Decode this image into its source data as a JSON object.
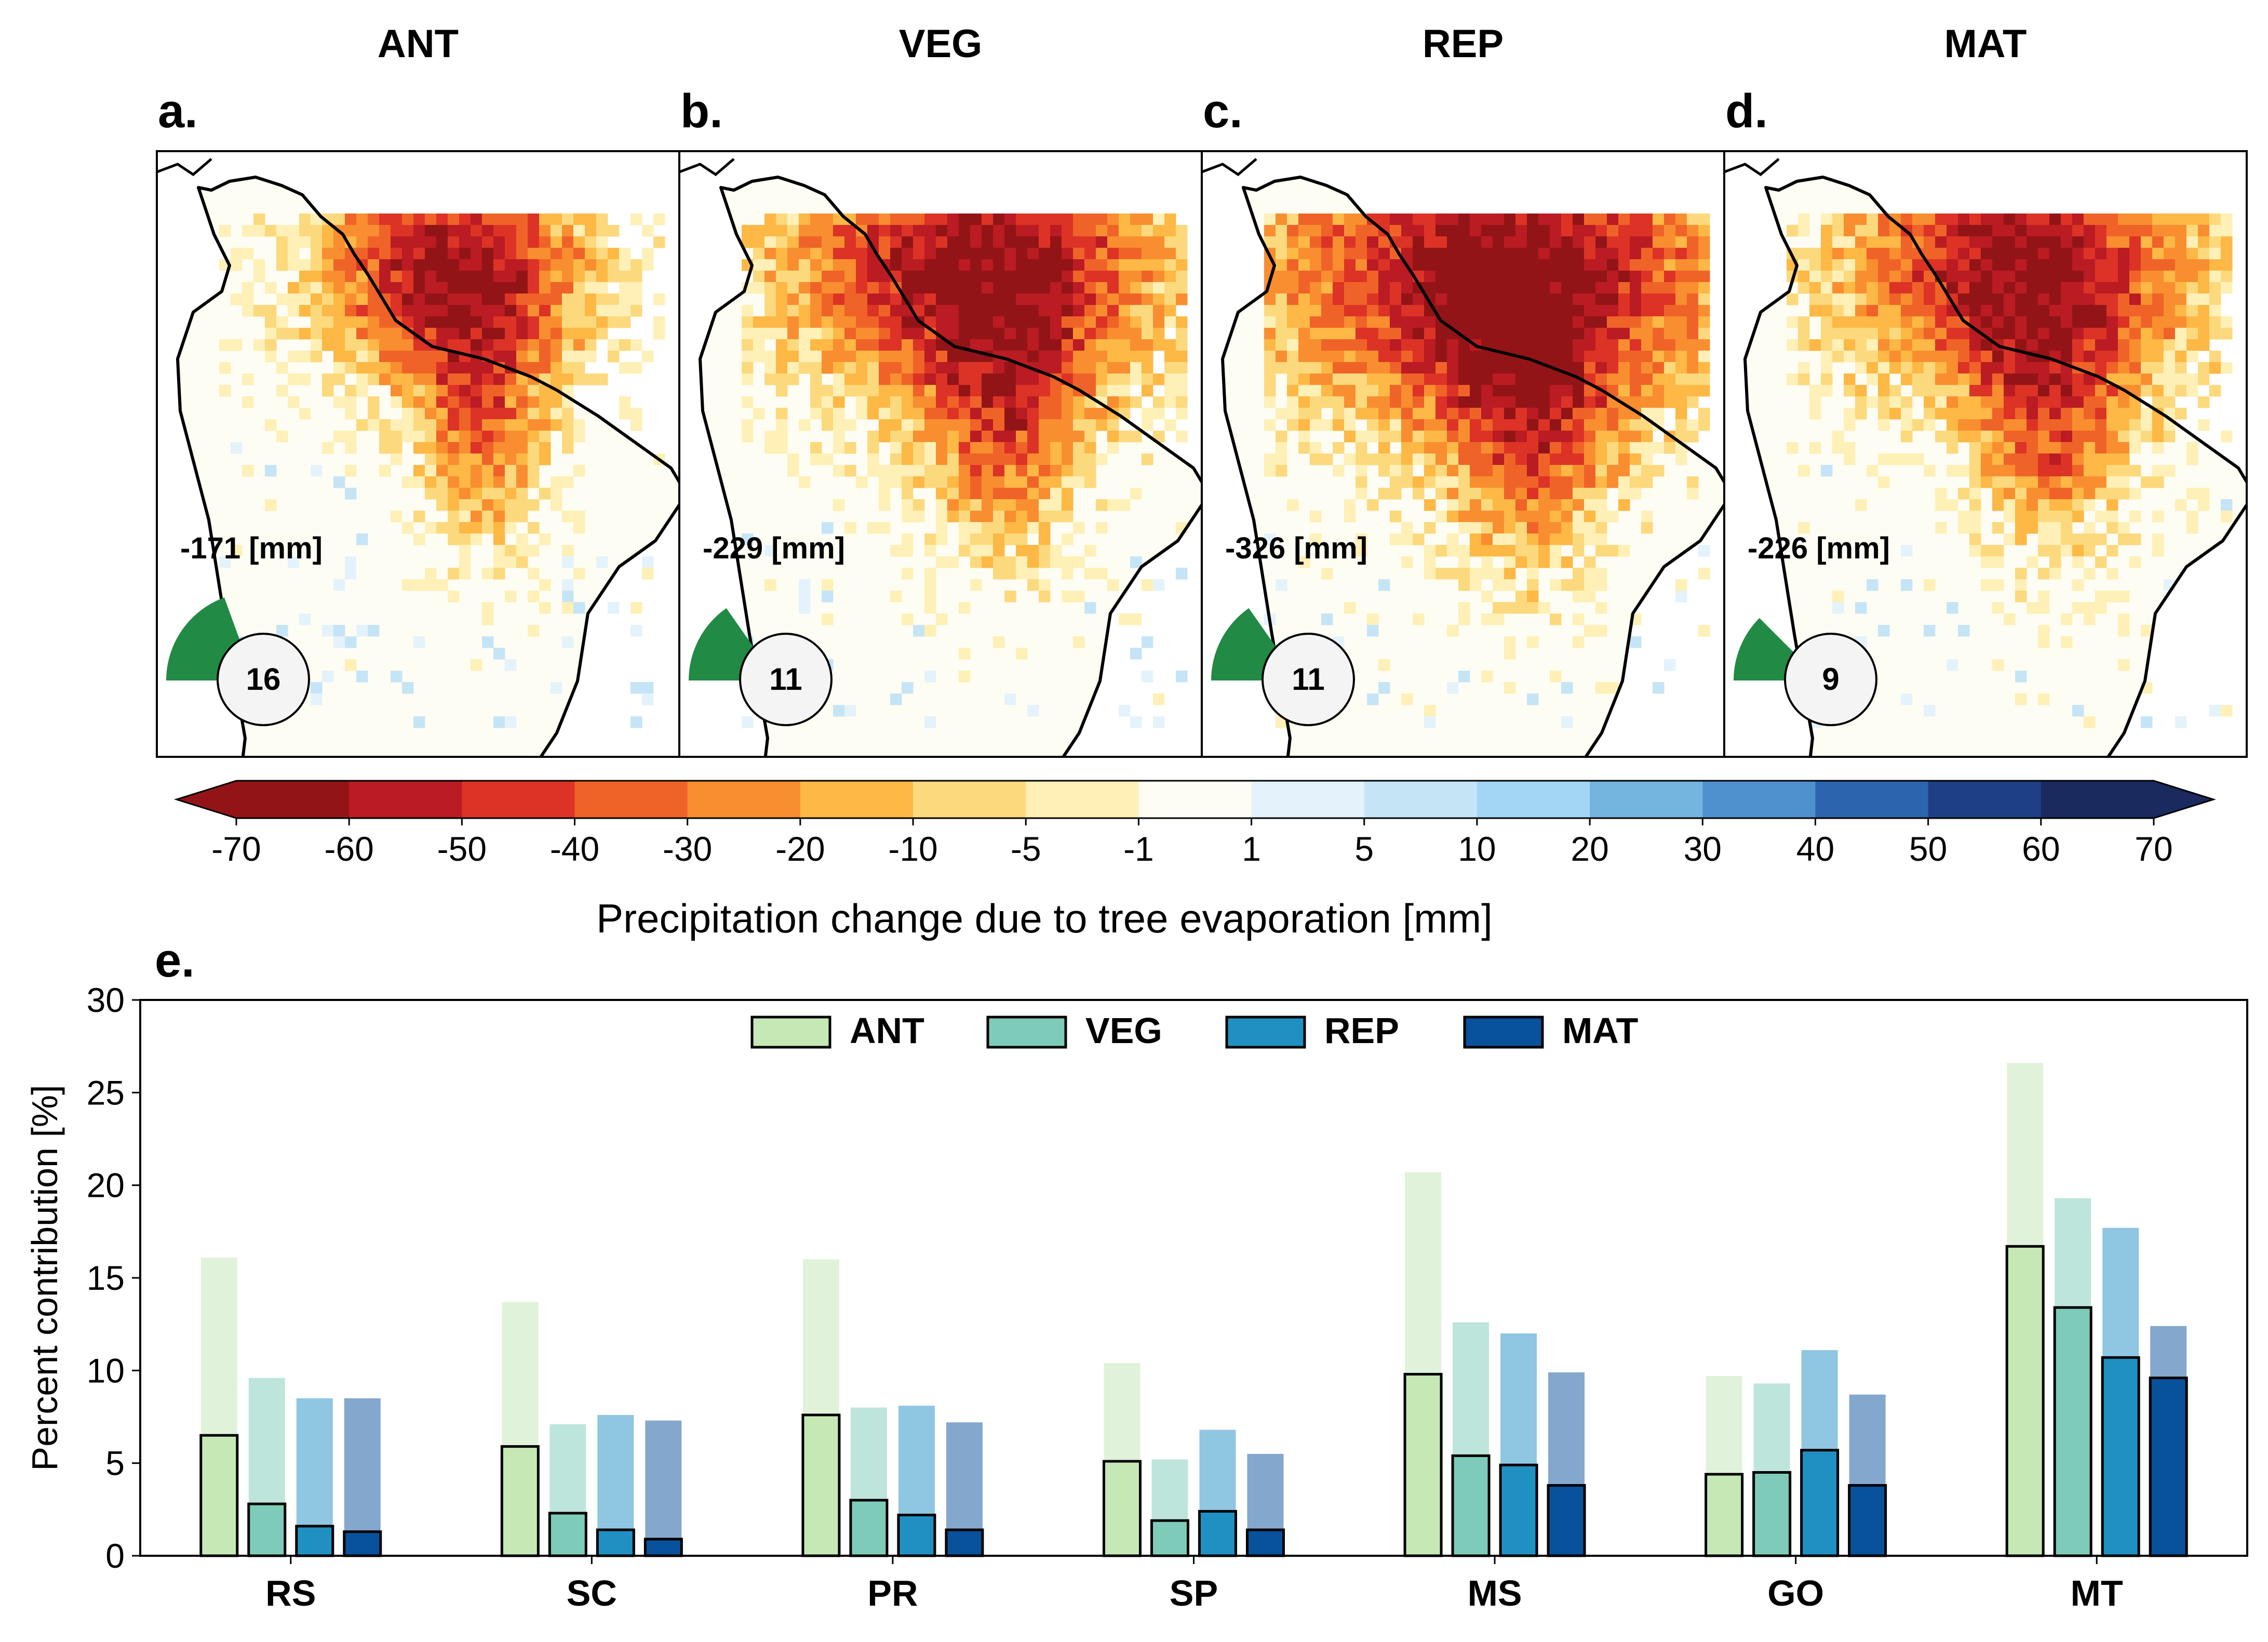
{
  "panels": [
    {
      "letter": "a.",
      "title": "ANT",
      "total": "-171 [mm]",
      "count": "16",
      "sector_deg": 70
    },
    {
      "letter": "b.",
      "title": "VEG",
      "total": "-229 [mm]",
      "count": "11",
      "sector_deg": 55
    },
    {
      "letter": "c.",
      "title": "REP",
      "total": "-326 [mm]",
      "count": "11",
      "sector_deg": 55
    },
    {
      "letter": "d.",
      "title": "MAT",
      "total": "-226 [mm]",
      "count": "9",
      "sector_deg": 45
    }
  ],
  "colorbar": {
    "label": "Precipitation change due to tree evaporation [mm]",
    "ticks": [
      "-70",
      "-60",
      "-50",
      "-40",
      "-30",
      "-20",
      "-10",
      "-5",
      "-1",
      "1",
      "5",
      "10",
      "20",
      "30",
      "40",
      "50",
      "60",
      "70"
    ],
    "colors": [
      "#931417",
      "#bb1b22",
      "#dc3326",
      "#f06328",
      "#f98e30",
      "#fdb845",
      "#fdd97e",
      "#fef0b6",
      "#fefdf4",
      "#e4f3fb",
      "#c5e5f6",
      "#a2d6f4",
      "#74b5e0",
      "#4f91cf",
      "#2c64ae",
      "#1e3f85",
      "#1a2a5e"
    ],
    "under_color": "#931417",
    "over_color": "#1a2a5e"
  },
  "chart_data": {
    "type": "bar",
    "panel_letter": "e.",
    "ylabel": "Percent contribution [%]",
    "ylim": [
      0,
      30
    ],
    "yticks": [
      "0",
      "5",
      "10",
      "15",
      "20",
      "25",
      "30"
    ],
    "categories": [
      "RS",
      "SC",
      "PR",
      "SP",
      "MS",
      "GO",
      "MT"
    ],
    "legend_position": "top-center",
    "series": [
      {
        "name": "ANT",
        "color": "#c5e8b5",
        "light_color": "#e1f2da",
        "values": [
          6.5,
          5.9,
          7.6,
          5.1,
          9.8,
          4.4,
          16.7
        ],
        "upper_values": [
          16.1,
          13.7,
          16.0,
          10.4,
          20.7,
          9.7,
          26.6
        ]
      },
      {
        "name": "VEG",
        "color": "#7dcbb8",
        "light_color": "#bee5db",
        "values": [
          2.8,
          2.3,
          3.0,
          1.9,
          5.4,
          4.5,
          13.4
        ],
        "upper_values": [
          9.6,
          7.1,
          8.0,
          5.2,
          12.6,
          9.3,
          19.3
        ]
      },
      {
        "name": "REP",
        "color": "#2090c2",
        "light_color": "#8fc6e1",
        "values": [
          1.6,
          1.4,
          2.2,
          2.4,
          4.9,
          5.7,
          10.7
        ],
        "upper_values": [
          8.5,
          7.6,
          8.1,
          6.8,
          12.0,
          11.1,
          17.7
        ]
      },
      {
        "name": "MAT",
        "color": "#08519b",
        "light_color": "#84a7cd",
        "values": [
          1.3,
          0.9,
          1.4,
          1.4,
          3.8,
          3.8,
          9.6
        ],
        "upper_values": [
          8.5,
          7.3,
          7.2,
          5.5,
          9.9,
          8.7,
          12.4
        ]
      }
    ]
  }
}
